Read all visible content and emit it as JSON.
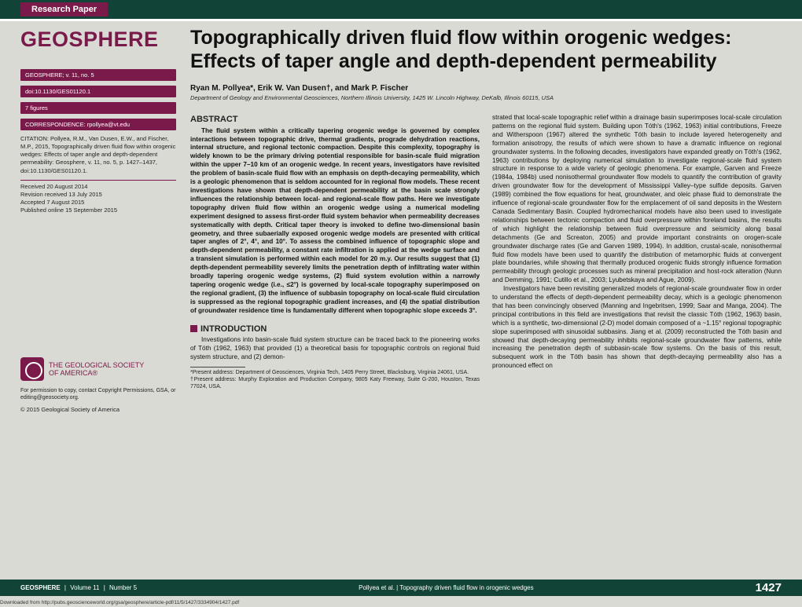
{
  "header": {
    "badge": "Research Paper"
  },
  "journal": {
    "name": "GEOSPHERE",
    "volume_line": "GEOSPHERE; v. 11, no. 5",
    "doi_line": "doi:10.1130/GES01120.1",
    "figures": "7 figures",
    "correspondence": "CORRESPONDENCE:  rpollyea@vt.edu",
    "citation": "CITATION: Pollyea, R.M., Van Dusen, E.W., and Fischer, M.P., 2015, Topographically driven fluid flow within orogenic wedges: Effects of taper angle and depth-dependent permeability: Geosphere, v. 11, no. 5, p. 1427–1437, doi:10.1130/GES01120.1.",
    "dates": {
      "received": "Received 20 August 2014",
      "revision": "Revision received 13 July 2015",
      "accepted": "Accepted 7 August 2015",
      "published": "Published online 15 September 2015"
    },
    "gsa": {
      "line1": "THE GEOLOGICAL SOCIETY",
      "line2": "OF AMERICA®"
    },
    "permission": "For permission to copy, contact Copyright Permissions, GSA, or editing@geosociety.org.",
    "copyright": "© 2015 Geological Society of America"
  },
  "paper": {
    "title": "Topographically driven fluid flow within orogenic wedges: Effects of taper angle and depth-dependent permeability",
    "authors": "Ryan M. Pollyea*, Erik W. Van Dusen†, and Mark P. Fischer",
    "affiliation": "Department of Geology and Environmental Geosciences, Northern Illinois University, 1425 W. Lincoln Highway, DeKalb, Illinois 60115, USA",
    "abstract_head": "ABSTRACT",
    "abstract_body": "The fluid system within a critically tapering orogenic wedge is governed by complex interactions between topographic drive, thermal gradients, prograde dehydration reactions, internal structure, and regional tectonic compaction. Despite this complexity, topography is widely known to be the primary driving potential responsible for basin-scale fluid migration within the upper 7–10 km of an orogenic wedge. In recent years, investigators have revisited the problem of basin-scale fluid flow with an emphasis on depth-decaying permeability, which is a geologic phenomenon that is seldom accounted for in regional flow models. These recent investigations have shown that depth-dependent permeability at the basin scale strongly influences the relationship between local- and regional-scale flow paths. Here we investigate topography driven fluid flow within an orogenic wedge using a numerical modeling experiment designed to assess first-order fluid system behavior when permeability decreases systematically with depth. Critical taper theory is invoked to define two-dimensional basin geometry, and three subaerially exposed orogenic wedge models are presented with critical taper angles of 2°, 4°, and 10°. To assess the combined influence of topographic slope and depth-dependent permeability, a constant rate infiltration is applied at the wedge surface and a transient simulation is performed within each model for 20 m.y. Our results suggest that (1) depth-dependent permeability severely limits the penetration depth of infiltrating water within broadly tapering orogenic wedge systems, (2) fluid system evolution within a narrowly tapering orogenic wedge (i.e., ≤2°) is governed by local-scale topography superimposed on the regional gradient, (3) the influence of subbasin topography on local-scale fluid circulation is suppressed as the regional topographic gradient increases, and (4) the spatial distribution of groundwater residence time is fundamentally different when topographic slope exceeds 3°.",
    "intro_head": "INTRODUCTION",
    "intro_p1": "Investigations into basin-scale fluid system structure can be traced back to the pioneering works of Tóth (1962, 1963) that provided (1) a theoretical basis for topographic controls on regional fluid system structure, and (2) demon-",
    "col2_continue": "strated that local-scale topographic relief within a drainage basin superimposes local-scale circulation patterns on the regional fluid system. Building upon Tóth's (1962, 1963) initial contributions, Freeze and Witherspoon (1967) altered the synthetic Tóth basin to include layered heterogeneity and formation anisotropy, the results of which were shown to have a dramatic influence on regional groundwater systems. In the following decades, investigators have expanded greatly on Tóth's (1962, 1963) contributions by deploying numerical simulation to investigate regional-scale fluid system structure in response to a wide variety of geologic phenomena. For example, Garven and Freeze (1984a, 1984b) used nonisothermal groundwater flow models to quantify the contribution of gravity driven groundwater flow for the development of Mississippi Valley–type sulfide deposits. Garven (1989) combined the flow equations for heat, groundwater, and oleic phase fluid to demonstrate the influence of regional-scale groundwater flow for the emplacement of oil sand deposits in the Western Canada Sedimentary Basin. Coupled hydromechanical models have also been used to investigate relationships between tectonic compaction and fluid overpressure within foreland basins, the results of which highlight the relationship between fluid overpressure and seismicity along basal detachments (Ge and Screaton, 2005) and provide important constraints on orogen-scale groundwater discharge rates (Ge and Garven 1989, 1994). In addition, crustal-scale, nonisothermal fluid flow models have been used to quantify the distribution of metamorphic fluids at convergent plate boundaries, while showing that thermally produced orogenic fluids strongly influence formation permeability through geologic processes such as mineral precipitation and host-rock alteration (Nunn and Demming, 1991; Cutillo et al., 2003; Lyubetskaya and Ague, 2009).",
    "col2_p2": "Investigators have been revisiting generalized models of regional-scale groundwater flow in order to understand the effects of depth-dependent permeability decay, which is a geologic phenomenon that has been convincingly observed (Manning and Ingebritsen, 1999; Saar and Manga, 2004). The principal contributions in this field are investigations that revisit the classic Tóth (1962, 1963) basin, which is a synthetic, two-dimensional (2-D) model domain composed of a ~1.15° regional topographic slope superimposed with sinusoidal subbasins. Jiang et al. (2009) reconstructed the Tóth basin and showed that depth-decaying permeability inhibits regional-scale groundwater flow patterns, while increasing the penetration depth of subbasin-scale flow systems. On the basis of this result, subsequent work in the Tóth basin has shown that depth-decaying permeability also has a pronounced effect on",
    "footnote1": "*Present address: Department of Geosciences, Virginia Tech, 1405 Perry Street, Blacksburg, Virginia 24061, USA.",
    "footnote2": "†Present address: Murphy Exploration and Production Company, 9805 Katy Freeway, Suite G-200, Houston, Texas 77024, USA."
  },
  "footer": {
    "journal": "GEOSPHERE",
    "vol": "Volume 11",
    "num": "Number 5",
    "running": "Pollyea et al.  |  Topography driven fluid flow in orogenic wedges",
    "page": "1427",
    "download": "Downloaded from http://pubs.geoscienceworld.org/gsa/geosphere/article-pdf/11/5/1427/3334904/1427.pdf"
  }
}
